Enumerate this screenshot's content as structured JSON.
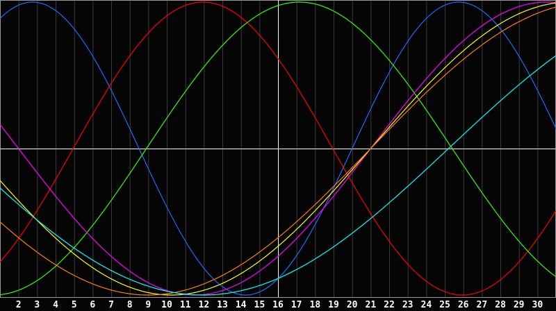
{
  "chart_data": {
    "type": "line",
    "title": "",
    "xlabel": "",
    "ylabel": "",
    "x_range": [
      1,
      31
    ],
    "y_range": [
      -1,
      1
    ],
    "x_tick_labels": [
      "2",
      "3",
      "4",
      "5",
      "6",
      "7",
      "8",
      "9",
      "10",
      "11",
      "12",
      "13",
      "14",
      "15",
      "16",
      "17",
      "18",
      "19",
      "20",
      "21",
      "22",
      "23",
      "24",
      "25",
      "26",
      "27",
      "28",
      "29",
      "30"
    ],
    "grid": true,
    "highlight_day": 16,
    "zero_line": true,
    "series": [
      {
        "color": "#1e6cff",
        "shape": "cosine",
        "period_days": 23,
        "peak_day": 2.75
      },
      {
        "color": "#ff0000",
        "shape": "sine",
        "period_days": 28,
        "upward_zero_day": 4.95
      },
      {
        "color": "#33ff00",
        "shape": "sine",
        "period_days": 33,
        "upward_zero_day": 8.9
      },
      {
        "color": "#ff00ff",
        "shape": "sine",
        "period_days": 38,
        "upward_zero_day": 21
      },
      {
        "color": "#ffff00",
        "shape": "sine",
        "period_days": 43,
        "upward_zero_day": 21
      },
      {
        "color": "#ff8000",
        "shape": "sine",
        "period_days": 48,
        "upward_zero_day": 21
      },
      {
        "color": "#00ffff",
        "shape": "sine",
        "period_days": 53,
        "upward_zero_day": 25.2
      }
    ],
    "colors": {
      "background": "#050505",
      "grid": "#3a3a3a",
      "axis": "#9a9a9a",
      "marker": "#ffffff"
    }
  }
}
